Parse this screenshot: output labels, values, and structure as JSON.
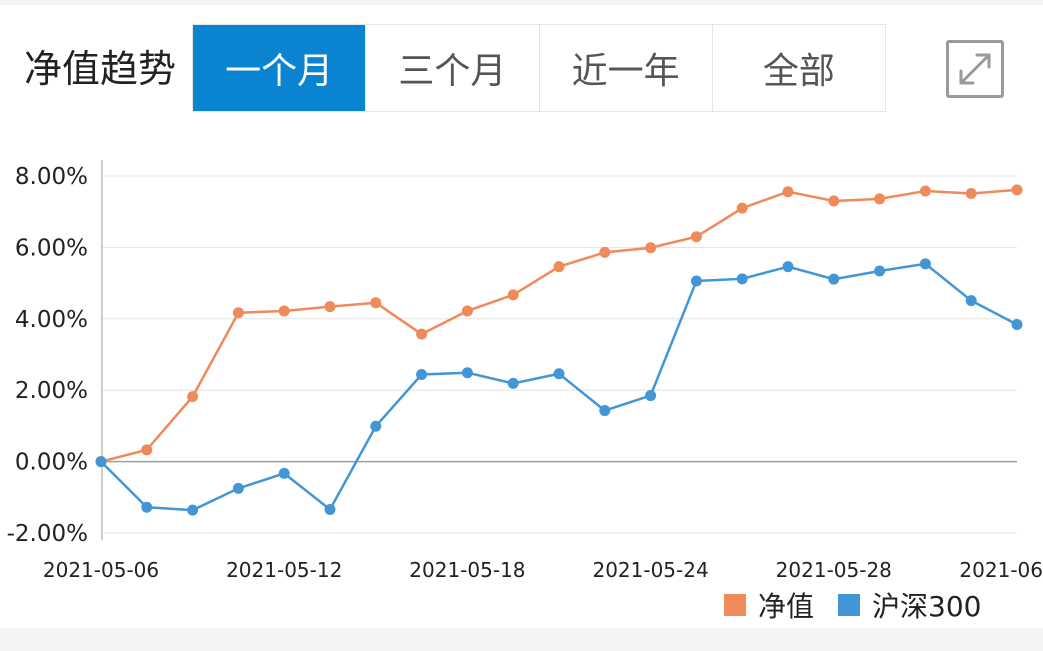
{
  "header": {
    "title": "净值趋势",
    "tabs": [
      {
        "label": "一个月",
        "active": true
      },
      {
        "label": "三个月",
        "active": false
      },
      {
        "label": "近一年",
        "active": false
      },
      {
        "label": "全部",
        "active": false
      }
    ],
    "expand_icon": "expand-icon"
  },
  "colors": {
    "accent": "#0a84d1",
    "nav_series": "#ef8a5b",
    "index_series": "#4296d6"
  },
  "chart_data": {
    "type": "line",
    "y_ticks": [
      "8.00%",
      "6.00%",
      "4.00%",
      "2.00%",
      "0.00%",
      "-2.00%"
    ],
    "y_tick_values": [
      8,
      6,
      4,
      2,
      0,
      -2
    ],
    "x_ticks": [
      {
        "index": 0,
        "label": "2021-05-06"
      },
      {
        "index": 4,
        "label": "2021-05-12"
      },
      {
        "index": 8,
        "label": "2021-05-18"
      },
      {
        "index": 12,
        "label": "2021-05-24"
      },
      {
        "index": 16,
        "label": "2021-05-28"
      },
      {
        "index": 20,
        "label": "2021-06"
      }
    ],
    "ylim": [
      -2,
      8
    ],
    "grid": true,
    "legend_position": "bottom-right",
    "series": [
      {
        "name": "净值",
        "color": "#ef8a5b",
        "values": [
          0.0,
          0.33,
          1.82,
          4.17,
          4.22,
          4.34,
          4.45,
          3.57,
          4.22,
          4.67,
          5.46,
          5.86,
          5.99,
          6.3,
          7.1,
          7.56,
          7.3,
          7.36,
          7.58,
          7.51,
          7.61
        ]
      },
      {
        "name": "沪深300",
        "color": "#4296d6",
        "values": [
          0.0,
          -1.28,
          -1.36,
          -0.75,
          -0.33,
          -1.34,
          0.99,
          2.44,
          2.49,
          2.19,
          2.46,
          1.43,
          1.85,
          5.06,
          5.12,
          5.46,
          5.11,
          5.34,
          5.54,
          4.51,
          3.84
        ]
      }
    ]
  }
}
